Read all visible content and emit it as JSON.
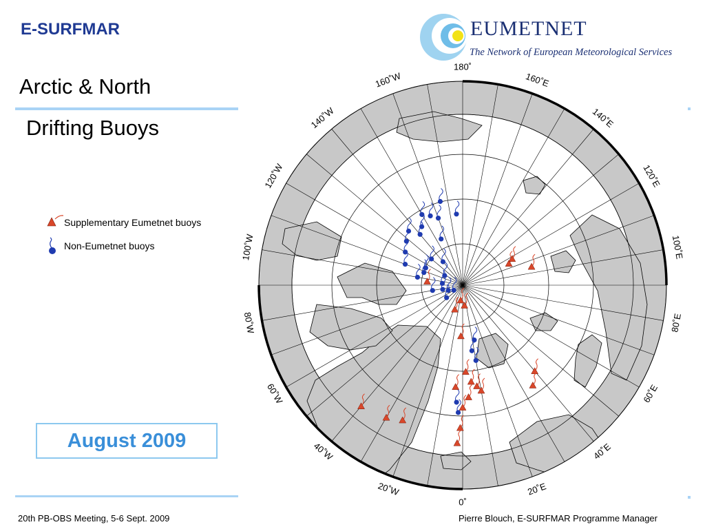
{
  "header": {
    "org": "E-SURFMAR",
    "title_line1": "Arctic & North",
    "title_line2": "Drifting Buoys"
  },
  "logo": {
    "name": "EUMETNET",
    "tagline": "The Network of European Meteorological Services"
  },
  "legend": {
    "items": [
      {
        "label": "Supplementary Eumetnet buoys",
        "symbol": "red-triangle-icon",
        "color": "#d9472a"
      },
      {
        "label": "Non-Eumetnet buoys",
        "symbol": "blue-dot-icon",
        "color": "#1f3bb0"
      }
    ]
  },
  "date": "August 2009",
  "footer": {
    "left": "20th PB-OBS Meeting, 5-6 Sept. 2009",
    "right": "Pierre Blouch, E-SURFMAR Programme Manager"
  },
  "map": {
    "longitude_labels": [
      {
        "text": "180˚",
        "lon": 180
      },
      {
        "text": "160˚E",
        "lon": 160
      },
      {
        "text": "140˚E",
        "lon": 140
      },
      {
        "text": "120˚E",
        "lon": 120
      },
      {
        "text": "100˚E",
        "lon": 100
      },
      {
        "text": "80˚E",
        "lon": 80
      },
      {
        "text": "60˚E",
        "lon": 60
      },
      {
        "text": "40˚E",
        "lon": 40
      },
      {
        "text": "20˚E",
        "lon": 20
      },
      {
        "text": "0˚",
        "lon": 0
      },
      {
        "text": "20˚W",
        "lon": -20
      },
      {
        "text": "40˚W",
        "lon": -40
      },
      {
        "text": "60˚W",
        "lon": -60
      },
      {
        "text": "80˚W",
        "lon": -80
      },
      {
        "text": "100˚W",
        "lon": -100
      },
      {
        "text": "120˚W",
        "lon": -120
      },
      {
        "text": "140˚W",
        "lon": -140
      },
      {
        "text": "160˚W",
        "lon": -160
      }
    ],
    "colors": {
      "land": "#c8c8c8",
      "ocean": "#ffffff",
      "eumetnet_buoy": "#d9472a",
      "other_buoy": "#1f3bb0"
    },
    "eumetnet_buoys": [
      {
        "lon": 105,
        "lat": 76
      },
      {
        "lon": 115,
        "lat": 80
      },
      {
        "lon": 118,
        "lat": 79
      },
      {
        "lon": -96,
        "lat": 83
      },
      {
        "lon": 5,
        "lat": 86
      },
      {
        "lon": -8,
        "lat": 87
      },
      {
        "lon": -18,
        "lat": 85
      },
      {
        "lon": -2,
        "lat": 80
      },
      {
        "lon": 2,
        "lat": 73
      },
      {
        "lon": -4,
        "lat": 70
      },
      {
        "lon": 5,
        "lat": 71
      },
      {
        "lon": 8,
        "lat": 70
      },
      {
        "lon": 10,
        "lat": 69
      },
      {
        "lon": 3,
        "lat": 68
      },
      {
        "lon": 0,
        "lat": 66
      },
      {
        "lon": -1,
        "lat": 62
      },
      {
        "lon": -2,
        "lat": 59
      },
      {
        "lon": 40,
        "lat": 68
      },
      {
        "lon": 35,
        "lat": 66
      },
      {
        "lon": -24,
        "lat": 61
      },
      {
        "lon": -40,
        "lat": 59
      },
      {
        "lon": -30,
        "lat": 60
      }
    ],
    "other_buoys": [
      {
        "lon": -165,
        "lat": 73
      },
      {
        "lon": -150,
        "lat": 74
      },
      {
        "lon": -145,
        "lat": 76
      },
      {
        "lon": -140,
        "lat": 77
      },
      {
        "lon": -135,
        "lat": 75
      },
      {
        "lon": -128,
        "lat": 76
      },
      {
        "lon": -120,
        "lat": 77
      },
      {
        "lon": -110,
        "lat": 78
      },
      {
        "lon": -155,
        "lat": 75
      },
      {
        "lon": -160,
        "lat": 76
      },
      {
        "lon": -175,
        "lat": 76
      },
      {
        "lon": -115,
        "lat": 82
      },
      {
        "lon": -108,
        "lat": 82
      },
      {
        "lon": -100,
        "lat": 81
      },
      {
        "lon": -95,
        "lat": 86
      },
      {
        "lon": -80,
        "lat": 84
      },
      {
        "lon": -78,
        "lat": 86
      },
      {
        "lon": -70,
        "lat": 87
      },
      {
        "lon": -60,
        "lat": 88
      },
      {
        "lon": -52,
        "lat": 86
      },
      {
        "lon": -130,
        "lat": 82
      },
      {
        "lon": -118,
        "lat": 86
      },
      {
        "lon": 10,
        "lat": 75
      },
      {
        "lon": 12,
        "lat": 79
      },
      {
        "lon": -3,
        "lat": 67
      },
      {
        "lon": -2,
        "lat": 65
      },
      {
        "lon": 8,
        "lat": 77
      },
      {
        "lon": -140,
        "lat": 84
      },
      {
        "lon": -155,
        "lat": 80
      }
    ]
  }
}
